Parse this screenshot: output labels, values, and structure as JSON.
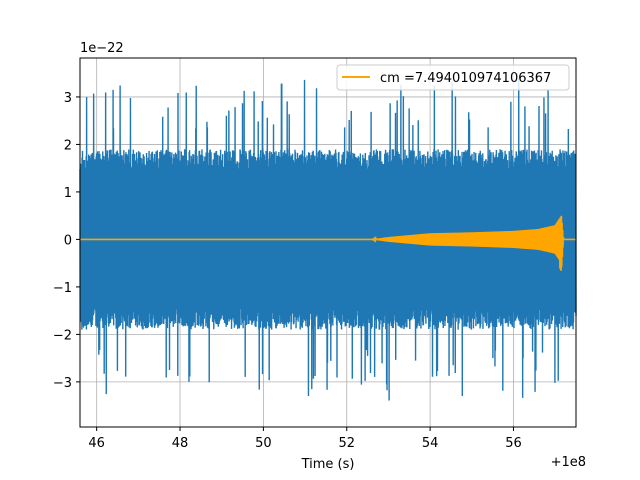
{
  "chart_data": {
    "type": "line",
    "title": "",
    "xlabel": "Time (s)",
    "ylabel": "",
    "x_offset_label": "+1e8",
    "y_scale_label": "1e−22",
    "xlim": [
      45.6,
      57.5
    ],
    "ylim": [
      -3.95,
      3.82
    ],
    "x_ticks": [
      46,
      48,
      50,
      52,
      54,
      56
    ],
    "x_tick_labels": [
      "46",
      "48",
      "50",
      "52",
      "54",
      "56"
    ],
    "y_ticks": [
      -3,
      -2,
      -1,
      0,
      1,
      2,
      3
    ],
    "y_tick_labels": [
      "−3",
      "−2",
      "−1",
      "0",
      "1",
      "2",
      "3"
    ],
    "grid": true,
    "legend_position": "top-right",
    "series": [
      {
        "name": "",
        "color": "#1f77b4",
        "kind": "noisy strain data",
        "x_range": [
          45.6,
          57.5
        ],
        "typical_amplitude": 1.9,
        "peak_max": 3.4,
        "peak_min": -3.5
      },
      {
        "name": "cm =7.494010974106367",
        "color": "#ffa500",
        "kind": "chirp template",
        "x_range": [
          45.6,
          57.5
        ],
        "envelope": [
          [
            45.6,
            0.0
          ],
          [
            52.6,
            0.0
          ],
          [
            53.0,
            0.05
          ],
          [
            53.5,
            0.09
          ],
          [
            54.0,
            0.13
          ],
          [
            55.0,
            0.15
          ],
          [
            56.0,
            0.18
          ],
          [
            56.6,
            0.22
          ],
          [
            57.0,
            0.3
          ],
          [
            57.15,
            0.5
          ],
          [
            57.2,
            0.0
          ],
          [
            57.5,
            0.0
          ]
        ]
      }
    ]
  }
}
